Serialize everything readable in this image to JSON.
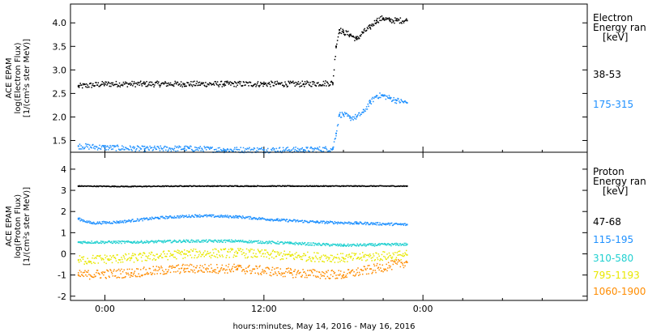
{
  "chart_data": [
    {
      "type": "scatter",
      "panel": "electron",
      "ylabel_lines": [
        "ACE EPAM",
        "log(Electron Flux)",
        "[1/(cm²s ster MeV)]"
      ],
      "ylim": [
        1.25,
        4.4
      ],
      "yticks": [
        1.5,
        2.0,
        2.5,
        3.0,
        3.5,
        4.0
      ],
      "ytick_labels": [
        "1.5",
        "2.0",
        "2.5",
        "3.0",
        "3.5",
        "4.0"
      ],
      "legend_title_lines": [
        "Electron",
        "Energy ran",
        "[keV]"
      ],
      "series": [
        {
          "name": "38-53",
          "color": "#000000",
          "points": [
            [
              -2.0,
              2.65
            ],
            [
              0,
              2.7
            ],
            [
              3,
              2.7
            ],
            [
              6,
              2.7
            ],
            [
              9,
              2.7
            ],
            [
              12,
              2.7
            ],
            [
              15,
              2.7
            ],
            [
              17.2,
              2.72
            ],
            [
              17.45,
              3.5
            ],
            [
              17.7,
              3.85
            ],
            [
              18,
              3.8
            ],
            [
              18.5,
              3.75
            ],
            [
              19,
              3.65
            ],
            [
              19.5,
              3.8
            ],
            [
              20,
              3.9
            ],
            [
              20.5,
              4.05
            ],
            [
              21,
              4.1
            ],
            [
              21.5,
              4.05
            ],
            [
              22,
              4.05
            ],
            [
              22.8,
              4.05
            ]
          ]
        },
        {
          "name": "175-315",
          "color": "#1e90ff",
          "points": [
            [
              -2.0,
              1.38
            ],
            [
              0,
              1.35
            ],
            [
              3,
              1.32
            ],
            [
              6,
              1.33
            ],
            [
              9,
              1.3
            ],
            [
              12,
              1.3
            ],
            [
              15,
              1.3
            ],
            [
              17.2,
              1.32
            ],
            [
              17.45,
              1.65
            ],
            [
              17.7,
              2.05
            ],
            [
              18,
              2.05
            ],
            [
              18.5,
              1.98
            ],
            [
              19,
              2.0
            ],
            [
              19.5,
              2.1
            ],
            [
              20,
              2.3
            ],
            [
              20.5,
              2.45
            ],
            [
              21,
              2.45
            ],
            [
              21.5,
              2.4
            ],
            [
              22,
              2.35
            ],
            [
              22.8,
              2.3
            ]
          ]
        }
      ]
    },
    {
      "type": "scatter",
      "panel": "proton",
      "ylabel_lines": [
        "ACE EPAM",
        "log(Proton Flux)",
        "[1/(cm²s ster MeV)]"
      ],
      "ylim": [
        -2.2,
        4.8
      ],
      "yticks": [
        -2,
        -1,
        0,
        1,
        2,
        3,
        4
      ],
      "ytick_labels": [
        "-2",
        "-1",
        "0",
        "1",
        "2",
        "3",
        "4"
      ],
      "legend_title_lines": [
        "Proton",
        "Energy ran",
        "[keV]"
      ],
      "series": [
        {
          "name": "47-68",
          "color": "#000000",
          "points": [
            [
              -2.0,
              3.2
            ],
            [
              2,
              3.18
            ],
            [
              6,
              3.2
            ],
            [
              10,
              3.2
            ],
            [
              14,
              3.2
            ],
            [
              18,
              3.2
            ],
            [
              22.8,
              3.2
            ]
          ]
        },
        {
          "name": "115-195",
          "color": "#1e90ff",
          "points": [
            [
              -2.0,
              1.65
            ],
            [
              -1,
              1.45
            ],
            [
              1,
              1.5
            ],
            [
              4,
              1.7
            ],
            [
              7,
              1.8
            ],
            [
              10,
              1.75
            ],
            [
              13,
              1.6
            ],
            [
              16,
              1.5
            ],
            [
              19,
              1.45
            ],
            [
              22.8,
              1.38
            ]
          ]
        },
        {
          "name": "310-580",
          "color": "#20d0d0",
          "points": [
            [
              -2.0,
              0.55
            ],
            [
              2,
              0.55
            ],
            [
              6,
              0.6
            ],
            [
              10,
              0.6
            ],
            [
              14,
              0.5
            ],
            [
              18,
              0.4
            ],
            [
              22.8,
              0.45
            ]
          ]
        },
        {
          "name": "795-1193",
          "color": "#e8e800",
          "points": [
            [
              -2.0,
              -0.3
            ],
            [
              2,
              -0.2
            ],
            [
              6,
              0.0
            ],
            [
              10,
              0.05
            ],
            [
              14,
              -0.1
            ],
            [
              18,
              -0.2
            ],
            [
              22.8,
              -0.05
            ]
          ]
        },
        {
          "name": "1060-1900",
          "color": "#ff8c00",
          "points": [
            [
              -2.0,
              -1.0
            ],
            [
              2,
              -0.9
            ],
            [
              6,
              -0.7
            ],
            [
              10,
              -0.7
            ],
            [
              14,
              -0.9
            ],
            [
              18,
              -1.0
            ],
            [
              22.8,
              -0.4
            ]
          ]
        }
      ]
    }
  ],
  "x_axis": {
    "label": "hours:minutes, May 14, 2016 - May 16, 2016",
    "range_hours": [
      -2.6,
      36.4
    ],
    "ticks": [
      0,
      12,
      24
    ],
    "tick_labels": [
      "0:00",
      "12:00",
      "0:00"
    ]
  }
}
